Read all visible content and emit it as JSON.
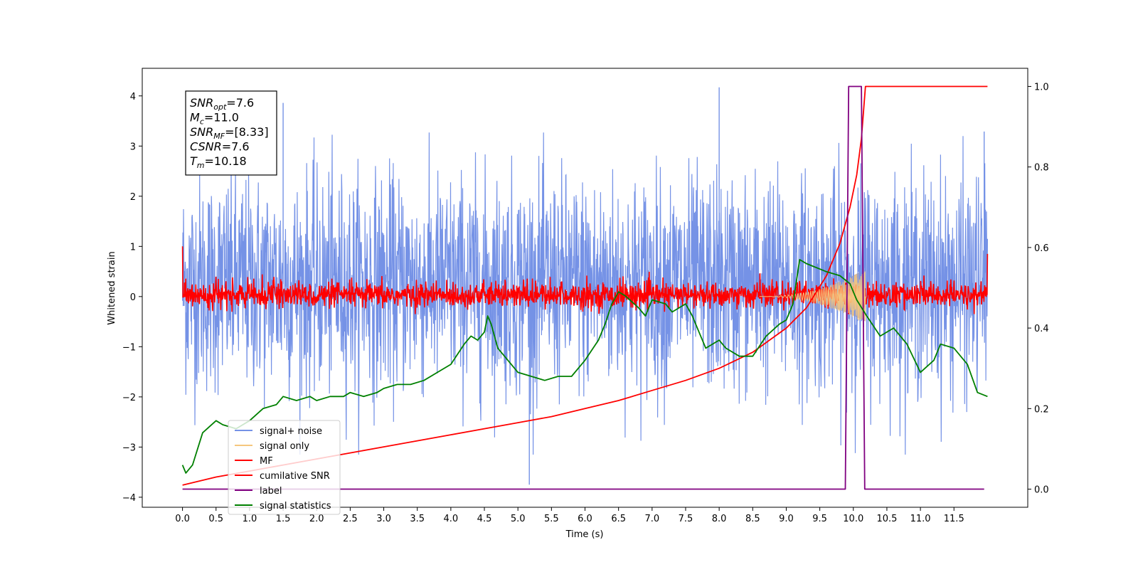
{
  "chart_data": {
    "type": "line",
    "title": "",
    "xlabel": "Time (s)",
    "ylabel": "Whitened strain",
    "y2label": "",
    "xlim": [
      -0.6,
      12.6
    ],
    "ylim": [
      -4.2,
      4.55
    ],
    "y2lim": [
      -0.045,
      1.045
    ],
    "x_ticks": [
      0.0,
      0.5,
      1.0,
      1.5,
      2.0,
      2.5,
      3.0,
      3.5,
      4.0,
      4.5,
      5.0,
      5.5,
      6.0,
      6.5,
      7.0,
      7.5,
      8.0,
      8.5,
      9.0,
      9.5,
      10.0,
      10.5,
      11.0,
      11.5
    ],
    "x_tick_labels": [
      "0.0",
      "0.5",
      "1.0",
      "1.5",
      "2.0",
      "2.5",
      "3.0",
      "3.5",
      "4.0",
      "4.5",
      "5.0",
      "5.5",
      "6.0",
      "6.5",
      "7.0",
      "7.5",
      "8.0",
      "8.5",
      "9.0",
      "9.5",
      "10.0",
      "10.5",
      "11.0",
      "11.5"
    ],
    "y_ticks": [
      4,
      3,
      2,
      1,
      0,
      -1,
      -2,
      -3,
      -4
    ],
    "y_tick_labels": [
      "4",
      "3",
      "2",
      "1",
      "0",
      "−1",
      "−2",
      "−3",
      "−4"
    ],
    "y2_ticks": [
      1.0,
      0.8,
      0.6,
      0.4,
      0.2,
      0.0
    ],
    "y2_tick_labels": [
      "1.0",
      "0.8",
      "0.6",
      "0.4",
      "0.2",
      "0.0"
    ],
    "grid": false,
    "legend_position": "lower-left",
    "colors": {
      "signal_noise": "#7592e6",
      "signal_only": "#f5c77e",
      "signal_fill": "#c8a07a",
      "mf": "#ff0000",
      "cumulative_snr": "#ff0000",
      "label": "#800080",
      "signal_statistics": "#008000"
    },
    "series": [
      {
        "name": "signal+ noise",
        "key": "signal_noise",
        "axis": "left",
        "kind": "noise",
        "x_range": [
          0.0,
          12.0
        ],
        "typical_band": [
          -1.7,
          2.2
        ],
        "max": 4.17,
        "min": -3.75,
        "spikes": [
          {
            "x": 1.5,
            "y": 3.86
          },
          {
            "x": 8.0,
            "y": 4.17
          },
          {
            "x": 5.17,
            "y": -3.75
          },
          {
            "x": 11.95,
            "y": 3.29
          }
        ]
      },
      {
        "name": "signal only",
        "key": "signal_only",
        "axis": "left",
        "kind": "chirp",
        "x_range": [
          8.6,
          10.18
        ],
        "peak_amplitude": 0.55
      },
      {
        "name": "MF",
        "key": "mf",
        "axis": "left",
        "kind": "noise",
        "x_range": [
          0.0,
          12.0
        ],
        "typical_band": [
          -0.15,
          0.2
        ],
        "start_value": 1.0,
        "end_value": 0.85
      },
      {
        "name": "cumilative SNR",
        "key": "cumulative_snr",
        "axis": "right",
        "points": [
          [
            0.0,
            0.01
          ],
          [
            0.5,
            0.03
          ],
          [
            1.0,
            0.045
          ],
          [
            1.5,
            0.06
          ],
          [
            2.0,
            0.075
          ],
          [
            2.5,
            0.09
          ],
          [
            3.0,
            0.105
          ],
          [
            3.5,
            0.12
          ],
          [
            4.0,
            0.135
          ],
          [
            4.5,
            0.15
          ],
          [
            5.0,
            0.165
          ],
          [
            5.5,
            0.18
          ],
          [
            6.0,
            0.2
          ],
          [
            6.5,
            0.22
          ],
          [
            7.0,
            0.245
          ],
          [
            7.5,
            0.27
          ],
          [
            8.0,
            0.3
          ],
          [
            8.5,
            0.34
          ],
          [
            9.0,
            0.4
          ],
          [
            9.3,
            0.45
          ],
          [
            9.6,
            0.53
          ],
          [
            9.8,
            0.61
          ],
          [
            9.95,
            0.7
          ],
          [
            10.05,
            0.78
          ],
          [
            10.12,
            0.87
          ],
          [
            10.18,
            1.0
          ],
          [
            12.0,
            1.0
          ]
        ]
      },
      {
        "name": "label",
        "key": "label",
        "axis": "right",
        "points": [
          [
            0.0,
            0.0
          ],
          [
            9.88,
            0.0
          ],
          [
            9.93,
            1.0
          ],
          [
            10.12,
            1.0
          ],
          [
            10.17,
            0.0
          ],
          [
            11.95,
            0.0
          ]
        ]
      },
      {
        "name": "signal statistics",
        "key": "signal_statistics",
        "axis": "right",
        "points": [
          [
            0.0,
            0.06
          ],
          [
            0.05,
            0.04
          ],
          [
            0.15,
            0.06
          ],
          [
            0.3,
            0.14
          ],
          [
            0.5,
            0.17
          ],
          [
            0.6,
            0.16
          ],
          [
            0.8,
            0.15
          ],
          [
            1.0,
            0.17
          ],
          [
            1.2,
            0.2
          ],
          [
            1.4,
            0.21
          ],
          [
            1.5,
            0.23
          ],
          [
            1.7,
            0.22
          ],
          [
            1.9,
            0.23
          ],
          [
            2.0,
            0.22
          ],
          [
            2.2,
            0.23
          ],
          [
            2.4,
            0.23
          ],
          [
            2.5,
            0.24
          ],
          [
            2.7,
            0.23
          ],
          [
            2.9,
            0.24
          ],
          [
            3.0,
            0.25
          ],
          [
            3.2,
            0.26
          ],
          [
            3.4,
            0.26
          ],
          [
            3.6,
            0.27
          ],
          [
            3.8,
            0.29
          ],
          [
            4.0,
            0.31
          ],
          [
            4.2,
            0.36
          ],
          [
            4.3,
            0.38
          ],
          [
            4.4,
            0.37
          ],
          [
            4.5,
            0.39
          ],
          [
            4.55,
            0.43
          ],
          [
            4.6,
            0.41
          ],
          [
            4.7,
            0.35
          ],
          [
            4.8,
            0.33
          ],
          [
            5.0,
            0.29
          ],
          [
            5.2,
            0.28
          ],
          [
            5.4,
            0.27
          ],
          [
            5.6,
            0.28
          ],
          [
            5.8,
            0.28
          ],
          [
            6.0,
            0.32
          ],
          [
            6.2,
            0.37
          ],
          [
            6.3,
            0.41
          ],
          [
            6.4,
            0.46
          ],
          [
            6.5,
            0.49
          ],
          [
            6.6,
            0.48
          ],
          [
            6.8,
            0.45
          ],
          [
            6.9,
            0.43
          ],
          [
            7.0,
            0.47
          ],
          [
            7.2,
            0.46
          ],
          [
            7.3,
            0.44
          ],
          [
            7.5,
            0.46
          ],
          [
            7.6,
            0.43
          ],
          [
            7.7,
            0.39
          ],
          [
            7.8,
            0.35
          ],
          [
            8.0,
            0.37
          ],
          [
            8.1,
            0.35
          ],
          [
            8.3,
            0.33
          ],
          [
            8.5,
            0.33
          ],
          [
            8.7,
            0.38
          ],
          [
            8.9,
            0.41
          ],
          [
            9.0,
            0.42
          ],
          [
            9.1,
            0.46
          ],
          [
            9.2,
            0.57
          ],
          [
            9.3,
            0.56
          ],
          [
            9.45,
            0.55
          ],
          [
            9.6,
            0.54
          ],
          [
            9.8,
            0.53
          ],
          [
            9.95,
            0.51
          ],
          [
            10.05,
            0.47
          ],
          [
            10.2,
            0.43
          ],
          [
            10.4,
            0.38
          ],
          [
            10.6,
            0.4
          ],
          [
            10.8,
            0.36
          ],
          [
            11.0,
            0.29
          ],
          [
            11.2,
            0.32
          ],
          [
            11.3,
            0.36
          ],
          [
            11.5,
            0.35
          ],
          [
            11.7,
            0.31
          ],
          [
            11.85,
            0.24
          ],
          [
            12.0,
            0.23
          ]
        ]
      }
    ],
    "annotations": [
      {
        "base": "SNR",
        "sub": "opt",
        "value": "=7.6"
      },
      {
        "base": "M",
        "sub": "c",
        "value": "=11.0"
      },
      {
        "base": "SNR",
        "sub": "MF",
        "value": "=[8.33]"
      },
      {
        "base": "CSNR",
        "sub": "",
        "value": "=7.6"
      },
      {
        "base": "T",
        "sub": "m",
        "value": "=10.18"
      }
    ]
  }
}
